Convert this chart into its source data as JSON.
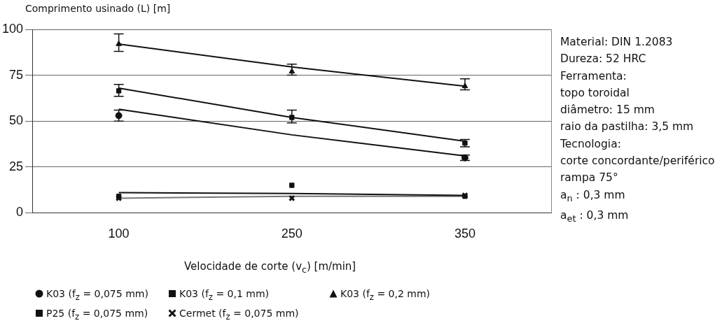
{
  "chart_data": {
    "type": "scatter",
    "ylabel": "Comprimento usinado (L) [m]",
    "xlabel": "Velocidade de corte (v$_{c}$) [m/min]",
    "categories": [
      "100",
      "250",
      "350"
    ],
    "ylim": [
      0,
      100
    ],
    "yticks": [
      0,
      25,
      50,
      75,
      100
    ],
    "grid": "y",
    "legend": "bottom",
    "series": [
      {
        "name": "K03 (f$_{z}$ = 0,075 mm)",
        "color": "#111111",
        "marker": "circle",
        "values": [
          53,
          null,
          30
        ],
        "errors": [
          [
            50,
            56
          ],
          null,
          [
            28.5,
            31.5
          ]
        ]
      },
      {
        "name": "K03 (f$_{z}$ = 0,1 mm)",
        "color": "#111111",
        "marker": "square",
        "values": [
          66.5,
          52,
          38
        ],
        "errors": [
          [
            63.5,
            70
          ],
          [
            49,
            56
          ],
          [
            36,
            40
          ]
        ]
      },
      {
        "name": "K03 (f$_{z}$ = 0,2 mm)",
        "color": "#111111",
        "marker": "triangle",
        "values": [
          92,
          77,
          69
        ],
        "errors": [
          [
            88,
            97.5
          ],
          [
            75,
            81
          ],
          [
            67,
            73
          ]
        ]
      },
      {
        "name": "P25 (f$_{z}$ = 0,075 mm)",
        "color": "#111111",
        "marker": "square",
        "values": [
          9,
          15,
          9
        ]
      },
      {
        "name": "Cermet (f$_{z}$ = 0,075 mm)",
        "color": "#111111",
        "marker": "cross",
        "values": [
          8,
          8,
          9.5
        ]
      },
      {
        "type": "line",
        "color": "#111111",
        "marker": "none",
        "values": [
          56.5,
          42.5,
          31
        ]
      },
      {
        "type": "line",
        "color": "#111111",
        "marker": "none",
        "values": [
          68,
          52,
          39
        ]
      },
      {
        "type": "line",
        "color": "#111111",
        "marker": "none",
        "values": [
          92,
          79.5,
          69
        ]
      },
      {
        "type": "line",
        "color": "#111111",
        "marker": "none",
        "values": [
          11,
          10.5,
          9.5
        ]
      },
      {
        "type": "line",
        "color": "#777777",
        "marker": "none",
        "values": [
          8,
          9,
          9
        ]
      }
    ],
    "annotations": [
      "Material:  DIN 1.2083",
      "Dureza:  52 HRC",
      "Ferramenta:",
      "topo toroidal",
      "diâmetro: 15 mm",
      "raio da pastilha: 3,5 mm",
      "Tecnologia:",
      "corte concordante/periférico",
      "rampa 75°",
      "a$_{n}$ : 0,3 mm",
      "a$_{et}$ : 0,3 mm"
    ]
  }
}
